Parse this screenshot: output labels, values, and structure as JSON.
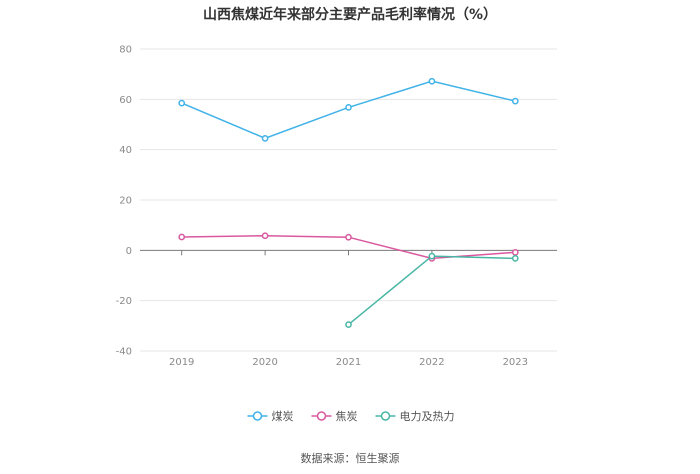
{
  "chart_data": {
    "type": "line",
    "title": "山西焦煤近年来部分主要产品毛利率情况（%）",
    "categories": [
      "2019",
      "2020",
      "2021",
      "2022",
      "2023"
    ],
    "ylim": [
      -40,
      80
    ],
    "yticks": [
      80,
      60,
      40,
      20,
      0,
      -20,
      -40
    ],
    "ytick_labels": [
      "80",
      "60",
      "40",
      "20",
      "0",
      "-20",
      "-40"
    ],
    "grid": true,
    "legend_position": "bottom",
    "series": [
      {
        "name": "煤炭",
        "color": "#3fb2e8",
        "values": [
          58.5,
          44.5,
          56.8,
          67.2,
          59.3
        ]
      },
      {
        "name": "焦炭",
        "color": "#d9589f",
        "values": [
          5.3,
          5.8,
          5.2,
          -3.2,
          -0.8
        ]
      },
      {
        "name": "电力及热力",
        "color": "#48b6a4",
        "values": [
          null,
          null,
          -29.5,
          -2.3,
          -3.2
        ]
      }
    ]
  },
  "source": "数据来源：恒生聚源"
}
